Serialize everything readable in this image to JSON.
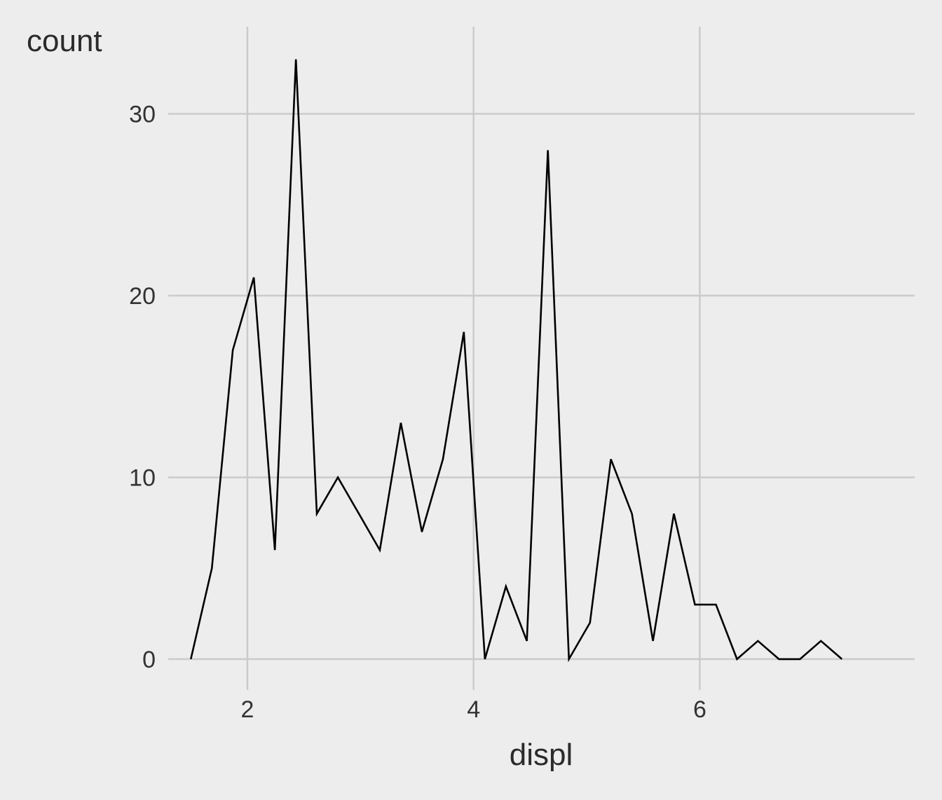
{
  "chart_data": {
    "type": "line",
    "title": "",
    "xlabel": "displ",
    "ylabel": "count",
    "xlim": [
      1.3,
      7.9
    ],
    "ylim": [
      -1.7,
      34.8
    ],
    "x_ticks": [
      2,
      4,
      6
    ],
    "y_ticks": [
      0,
      10,
      20,
      30
    ],
    "grid": true,
    "legend": "none",
    "colors": {
      "background": "#ededed",
      "grid": "#cbcbcb",
      "line": "#000000",
      "text": "#333333"
    },
    "series": [
      {
        "x": [
          1.5,
          1.686,
          1.871,
          2.057,
          2.243,
          2.429,
          2.614,
          2.8,
          2.986,
          3.171,
          3.357,
          3.543,
          3.729,
          3.914,
          4.1,
          4.286,
          4.471,
          4.657,
          4.843,
          5.029,
          5.214,
          5.4,
          5.586,
          5.771,
          5.957,
          6.143,
          6.329,
          6.514,
          6.7,
          6.886,
          7.071,
          7.257
        ],
        "values": [
          0,
          5,
          17,
          21,
          6,
          33,
          8,
          10,
          8,
          6,
          13,
          7,
          11,
          18,
          0,
          4,
          1,
          28,
          0,
          2,
          11,
          8,
          1,
          8,
          3,
          3,
          0,
          1,
          0,
          0,
          1,
          0
        ]
      }
    ]
  }
}
